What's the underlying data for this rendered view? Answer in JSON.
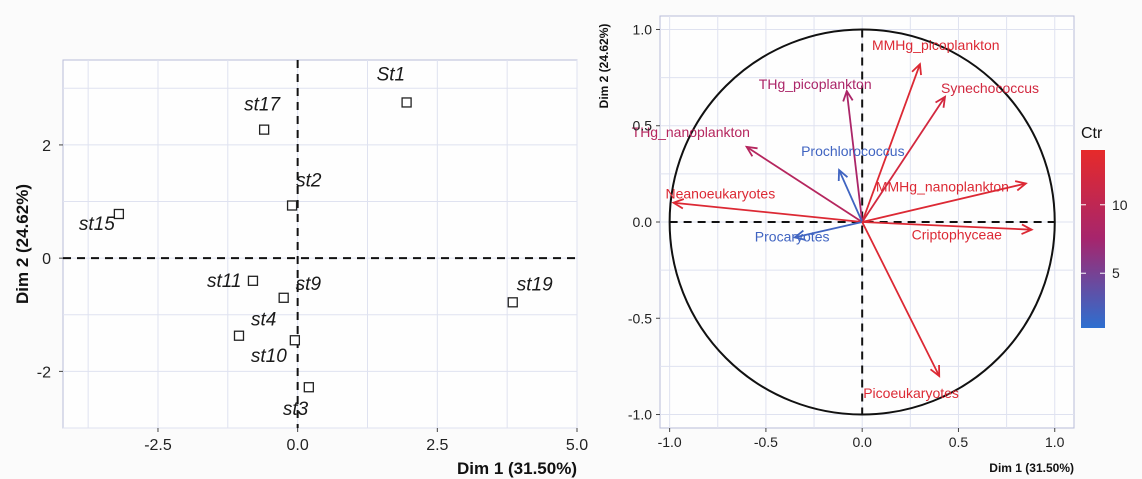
{
  "chart_data": [
    {
      "type": "scatter",
      "xlabel": "Dim 1 (31.50%)",
      "ylabel": "Dim 2 (24.62%)",
      "xlim": [
        -4.2,
        5.0
      ],
      "ylim": [
        -3.0,
        3.5
      ],
      "xticks": [
        -2.5,
        0.0,
        2.5,
        5.0
      ],
      "xtick_labels": [
        "-2.5",
        "0.0",
        "2.5",
        "5.0"
      ],
      "yticks": [
        -2,
        0,
        2
      ],
      "ytick_labels": [
        "-2",
        "0",
        "2"
      ],
      "grid": true,
      "points": [
        {
          "label": "st1",
          "x": 1.95,
          "y": 2.75
        },
        {
          "label": "st17",
          "x": -0.6,
          "y": 2.27
        },
        {
          "label": "st2",
          "x": -0.1,
          "y": 0.93
        },
        {
          "label": "st15",
          "x": -3.2,
          "y": 0.78
        },
        {
          "label": "st11",
          "x": -0.8,
          "y": -0.4
        },
        {
          "label": "st9",
          "x": -0.25,
          "y": -0.7
        },
        {
          "label": "st19",
          "x": 3.85,
          "y": -0.78
        },
        {
          "label": "st4",
          "x": -1.05,
          "y": -1.37
        },
        {
          "label": "st10",
          "x": -0.05,
          "y": -1.45
        },
        {
          "label": "st3",
          "x": 0.2,
          "y": -2.28
        }
      ],
      "point_labels": [
        "St1",
        "st17",
        "st2",
        "st15",
        "st11",
        "st9",
        "st19",
        "st4",
        "st10",
        "st3"
      ]
    },
    {
      "type": "scatter",
      "subtype": "correlation-circle",
      "xlabel": "Dim 1 (31.50%)",
      "ylabel": "Dim 2 (24.62%)",
      "xlim": [
        -1.05,
        1.1
      ],
      "ylim": [
        -1.07,
        1.07
      ],
      "xticks": [
        -1.0,
        -0.5,
        0.0,
        0.5,
        1.0
      ],
      "xtick_labels": [
        "-1.0",
        "-0.5",
        "0.0",
        "0.5",
        "1.0"
      ],
      "yticks": [
        -1.0,
        -0.5,
        0.0,
        0.5,
        1.0
      ],
      "ytick_labels": [
        "-1.0",
        "-0.5",
        "0.0",
        "0.5",
        "1.0"
      ],
      "grid": true,
      "color_scale": {
        "title": "Ctr",
        "min": 1,
        "max": 14,
        "low_color": "#2d6fd0",
        "mid_color": "#a6256d",
        "high_color": "#e62a2a",
        "ticks": [
          5,
          10
        ],
        "tick_labels": [
          "5",
          "10"
        ]
      },
      "arrows": [
        {
          "name": "MMHg_picoplankton",
          "x": 0.3,
          "y": 0.82,
          "ctr": 13
        },
        {
          "name": "THg_picoplankton",
          "x": -0.08,
          "y": 0.68,
          "ctr": 8
        },
        {
          "name": "Synechococcus",
          "x": 0.43,
          "y": 0.65,
          "ctr": 12
        },
        {
          "name": "THg_nanoplankton",
          "x": -0.6,
          "y": 0.39,
          "ctr": 9
        },
        {
          "name": "Prochlorococcus",
          "x": -0.12,
          "y": 0.27,
          "ctr": 2
        },
        {
          "name": "Neanoeukaryotes",
          "x": -0.98,
          "y": 0.1,
          "ctr": 13
        },
        {
          "name": "MMHg_nanoplankton",
          "x": 0.85,
          "y": 0.2,
          "ctr": 13
        },
        {
          "name": "Procaryotes",
          "x": -0.35,
          "y": -0.08,
          "ctr": 2
        },
        {
          "name": "Criptophyceae",
          "x": 0.88,
          "y": -0.04,
          "ctr": 13
        },
        {
          "name": "Picoeukaryotes",
          "x": 0.4,
          "y": -0.8,
          "ctr": 13
        }
      ],
      "arrow_labels": [
        "MMHg_picoplankton",
        "THg_picoplankton",
        "Synechococcus",
        "THg_nanoplankton",
        "Prochlorococcus",
        "Neanoeukaryotes",
        "MMHg_nanoplankton",
        "Procaryotes",
        "Criptophyceae",
        "Picoeukaryotes"
      ]
    }
  ]
}
